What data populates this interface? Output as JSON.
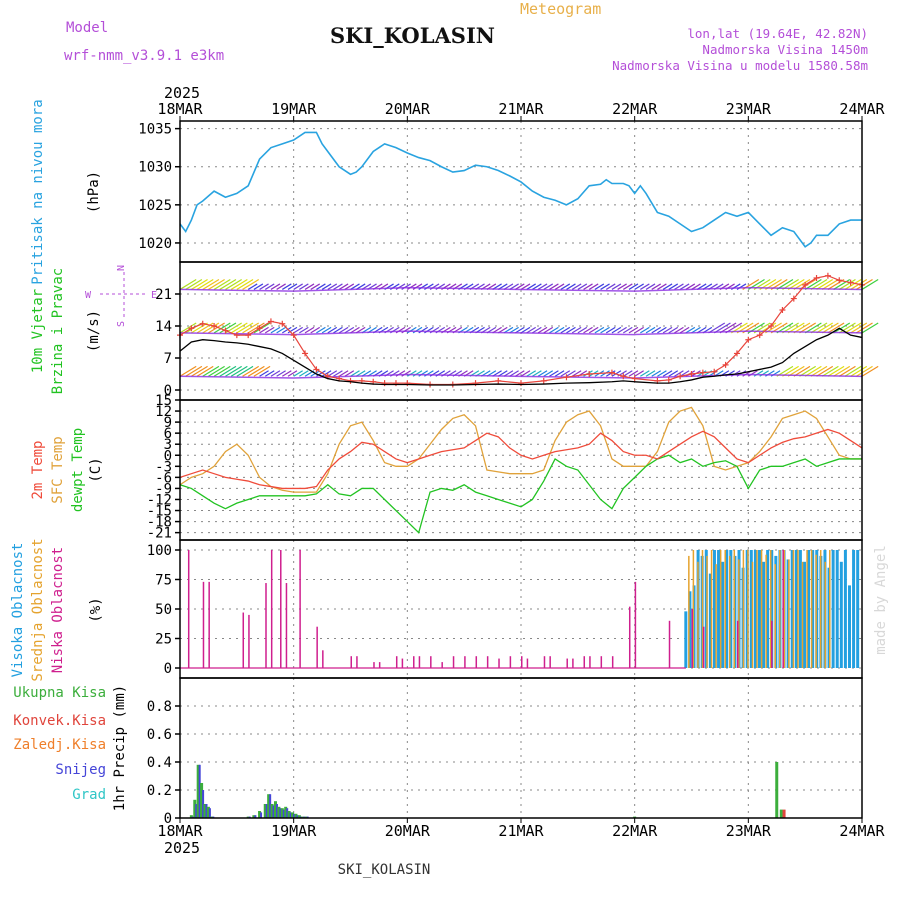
{
  "header": {
    "model_label": "Model",
    "model_name": "wrf-nmm_v3.9.1 e3km",
    "title": "SKI_KOLASIN",
    "meteogram": "Meteogram",
    "coords": "lon,lat (19.64E, 42.82N)",
    "elevation": "Nadmorska Visina 1450m",
    "model_elevation": "Nadmorska Visina u modelu 1580.58m",
    "footer_name": "SKI_KOLASIN",
    "watermark": "made by Angel"
  },
  "colors": {
    "pressure": "#29a3e0",
    "temp2m": "#ef4b3a",
    "sfc": "#e0a23a",
    "dewpt": "#22c322",
    "wind_purple": "#8a2be2",
    "wind_red": "#e8453c",
    "high_cloud": "#23a0e0",
    "mid_cloud": "#e5a32e",
    "low_cloud": "#cf1f8e",
    "total_precip": "#3cae3c",
    "conv_precip": "#e0453c",
    "frozen_precip": "#ef7f2a",
    "snow": "#4545d8",
    "graupel": "#2fc6c6"
  },
  "chart_data": [
    {
      "type": "line",
      "panel": "pressure",
      "title": "Pritisak na nivou mora",
      "ylabel": "(hPa)",
      "ylim": [
        1017.5,
        1036
      ],
      "yticks": [
        1020,
        1025,
        1030,
        1035
      ],
      "x_top_year": "2025",
      "x_ticks": [
        "18MAR",
        "19MAR",
        "20MAR",
        "21MAR",
        "22MAR",
        "23MAR",
        "24MAR"
      ],
      "xlim_days": [
        0,
        6
      ],
      "x": [
        0,
        0.05,
        0.1,
        0.15,
        0.2,
        0.3,
        0.4,
        0.5,
        0.6,
        0.7,
        0.8,
        0.9,
        1.0,
        1.1,
        1.2,
        1.25,
        1.3,
        1.4,
        1.5,
        1.55,
        1.6,
        1.7,
        1.8,
        1.9,
        2.0,
        2.1,
        2.2,
        2.3,
        2.4,
        2.5,
        2.6,
        2.7,
        2.8,
        2.9,
        3.0,
        3.1,
        3.2,
        3.3,
        3.4,
        3.5,
        3.6,
        3.7,
        3.75,
        3.8,
        3.9,
        3.95,
        4.0,
        4.05,
        4.1,
        4.2,
        4.3,
        4.4,
        4.5,
        4.6,
        4.7,
        4.8,
        4.9,
        5.0,
        5.1,
        5.2,
        5.3,
        5.4,
        5.5,
        5.55,
        5.6,
        5.7,
        5.8,
        5.9,
        6.0
      ],
      "values": [
        1022.5,
        1021.5,
        1023,
        1025,
        1025.5,
        1026.8,
        1026,
        1026.5,
        1027.5,
        1031,
        1032.5,
        1033,
        1033.5,
        1034.5,
        1034.5,
        1033,
        1032,
        1030,
        1029,
        1029.3,
        1030,
        1032,
        1033,
        1032.5,
        1031.8,
        1031.2,
        1030.8,
        1030,
        1029.3,
        1029.5,
        1030.2,
        1030,
        1029.5,
        1028.8,
        1028,
        1026.8,
        1026,
        1025.6,
        1025,
        1025.8,
        1027.5,
        1027.7,
        1028.3,
        1027.8,
        1027.8,
        1027.5,
        1026.5,
        1027.5,
        1026.5,
        1024,
        1023.5,
        1022.5,
        1021.5,
        1022,
        1023,
        1024,
        1023.5,
        1024,
        1022.5,
        1021,
        1022,
        1021.5,
        1019.5,
        1020,
        1021,
        1021,
        1022.5,
        1023,
        1023
      ]
    },
    {
      "type": "line",
      "panel": "wind",
      "title": "10m Vjetar",
      "subtitle": "Brzina i Pravac",
      "ylabel": "(m/s)",
      "ylim": [
        0,
        28
      ],
      "yticks": [
        0,
        7,
        14,
        21
      ],
      "compass": {
        "north": "N",
        "west": "W",
        "east": "E",
        "south": "S"
      },
      "x": [
        0,
        0.1,
        0.2,
        0.3,
        0.4,
        0.5,
        0.6,
        0.7,
        0.8,
        0.9,
        1.0,
        1.1,
        1.2,
        1.3,
        1.4,
        1.5,
        1.6,
        1.7,
        1.8,
        1.9,
        2.0,
        2.2,
        2.4,
        2.6,
        2.8,
        3.0,
        3.2,
        3.4,
        3.6,
        3.8,
        3.9,
        4.0,
        4.2,
        4.3,
        4.4,
        4.5,
        4.6,
        4.7,
        4.8,
        4.9,
        5.0,
        5.1,
        5.2,
        5.3,
        5.4,
        5.5,
        5.6,
        5.7,
        5.8,
        5.9,
        6.0
      ],
      "series": [
        {
          "name": "speed",
          "values": [
            8.5,
            10.5,
            11,
            10.8,
            10.5,
            10.3,
            10,
            9.5,
            9,
            8,
            6.5,
            5,
            3.5,
            2.5,
            2,
            1.8,
            1.5,
            1.3,
            1.2,
            1.2,
            1.2,
            1.1,
            1.1,
            1.2,
            1.3,
            1.2,
            1.3,
            1.5,
            1.6,
            1.8,
            2,
            1.8,
            1.5,
            1.5,
            1.8,
            2.2,
            2.8,
            3,
            3.3,
            3.5,
            4,
            4.5,
            5,
            6,
            8,
            9.5,
            11,
            12,
            13.5,
            12,
            11.5
          ]
        },
        {
          "name": "gust",
          "values": [
            12,
            13.5,
            14.5,
            14,
            13,
            12,
            12,
            13.5,
            15,
            14.5,
            12,
            8,
            4.5,
            3,
            2.5,
            2,
            2,
            1.8,
            1.5,
            1.5,
            1.5,
            1.2,
            1.2,
            1.5,
            2,
            1.5,
            2,
            2.8,
            3.5,
            3.8,
            3,
            2.5,
            2,
            2.2,
            3,
            3.5,
            3.8,
            4,
            5.5,
            8,
            11,
            12,
            14,
            17.5,
            20,
            23,
            24.5,
            25,
            24,
            23.5,
            23
          ]
        }
      ]
    },
    {
      "type": "line",
      "panel": "temperature",
      "labels": [
        "2m Temp",
        "SFC Temp",
        "dewpt Temp"
      ],
      "ylabel": "(C)",
      "ylim": [
        -23,
        15
      ],
      "yticks": [
        15,
        12,
        9,
        6,
        3,
        0,
        -3,
        -6,
        -9,
        -12,
        -15,
        -18,
        -21
      ],
      "x": [
        0,
        0.1,
        0.2,
        0.3,
        0.4,
        0.5,
        0.6,
        0.7,
        0.8,
        0.9,
        1.0,
        1.1,
        1.2,
        1.3,
        1.4,
        1.5,
        1.6,
        1.7,
        1.8,
        1.9,
        2.0,
        2.1,
        2.2,
        2.3,
        2.4,
        2.5,
        2.6,
        2.7,
        2.8,
        2.9,
        3.0,
        3.1,
        3.2,
        3.3,
        3.4,
        3.5,
        3.6,
        3.7,
        3.8,
        3.9,
        4.0,
        4.1,
        4.2,
        4.3,
        4.4,
        4.5,
        4.6,
        4.7,
        4.8,
        4.9,
        5.0,
        5.1,
        5.2,
        5.3,
        5.4,
        5.5,
        5.6,
        5.7,
        5.8,
        5.9,
        6.0
      ],
      "series": [
        {
          "name": "2m Temp",
          "values": [
            -6,
            -5,
            -4,
            -5,
            -6,
            -6.5,
            -7,
            -8,
            -8.5,
            -9,
            -9,
            -9,
            -8.5,
            -4,
            -1,
            1,
            3.5,
            3,
            1,
            -1,
            -2,
            -1,
            0,
            1,
            1.5,
            2,
            4,
            6,
            5,
            2,
            0,
            -1,
            0,
            1,
            1.5,
            2,
            3,
            6,
            4,
            1,
            0,
            0,
            -1,
            1,
            3,
            5,
            6.5,
            5,
            2,
            -1,
            -2,
            0,
            2,
            3.5,
            4.5,
            5,
            6,
            7,
            6,
            4,
            2
          ]
        },
        {
          "name": "SFC Temp",
          "values": [
            -8,
            -6,
            -5,
            -3,
            1,
            3,
            0,
            -6,
            -8.5,
            -9.5,
            -10,
            -10,
            -10,
            -5,
            3,
            8,
            9,
            4,
            -2,
            -3,
            -3,
            -1,
            3,
            7,
            10,
            11,
            8,
            -4,
            -4.5,
            -5,
            -5,
            -5,
            -4,
            4,
            9,
            11,
            12,
            8,
            -1,
            -3,
            -3,
            -3,
            1,
            9,
            12,
            13,
            8,
            -3,
            -4,
            -3,
            -2,
            1,
            5,
            10,
            11,
            12,
            10,
            5,
            0,
            -1,
            -1
          ]
        },
        {
          "name": "dewpt Temp",
          "values": [
            -8,
            -9,
            -11,
            -13,
            -14.5,
            -13,
            -12,
            -11,
            -11,
            -11,
            -11,
            -11,
            -10.5,
            -8,
            -10.5,
            -11,
            -9,
            -9,
            -12,
            -15,
            -18,
            -21,
            -10,
            -9,
            -9.5,
            -8,
            -10,
            -11,
            -12,
            -13,
            -14,
            -12,
            -7,
            -1,
            -3,
            -4,
            -8,
            -12,
            -14.5,
            -9,
            -6,
            -3,
            -1,
            0,
            -2,
            -1,
            -3,
            -2,
            -1.5,
            -3,
            -9,
            -4,
            -3,
            -3,
            -2,
            -1,
            -3,
            -2,
            -1,
            -1,
            -1
          ]
        }
      ]
    },
    {
      "type": "bar",
      "panel": "clouds",
      "labels": [
        "Visoka Oblacnost",
        "Srednja Oblacnost",
        "Niska Oblacnost"
      ],
      "ylabel": "(%)",
      "ylim": [
        0,
        100
      ],
      "yticks": [
        0,
        25,
        50,
        75,
        100
      ],
      "low_x": [
        0.07,
        0.2,
        0.25,
        0.55,
        0.6,
        0.75,
        0.8,
        0.88,
        0.93,
        1.05,
        1.2,
        1.25,
        1.5,
        1.55,
        1.7,
        1.75,
        1.9,
        1.95,
        2.05,
        2.1,
        2.2,
        2.3,
        2.4,
        2.5,
        2.6,
        2.7,
        2.8,
        2.9,
        3.0,
        3.05,
        3.2,
        3.25,
        3.4,
        3.45,
        3.55,
        3.6,
        3.7,
        3.8,
        3.95,
        4.0,
        4.3,
        4.5,
        4.6,
        4.9,
        5.2,
        5.3
      ],
      "low_values": [
        100,
        73,
        73,
        47,
        45,
        72,
        100,
        100,
        72,
        100,
        35,
        15,
        10,
        10,
        5,
        5,
        10,
        8,
        10,
        10,
        10,
        5,
        10,
        10,
        10,
        10,
        8,
        10,
        10,
        8,
        10,
        10,
        8,
        8,
        10,
        10,
        10,
        10,
        52,
        73,
        40,
        50,
        35,
        40,
        40,
        100
      ],
      "mid_start_x": 4.47,
      "high_start_x": 4.45,
      "mid_values": [
        95,
        100,
        90,
        100,
        95,
        100,
        88,
        100,
        100,
        95,
        100,
        92,
        100,
        100,
        90,
        100,
        100,
        96,
        100,
        88,
        100,
        100,
        92,
        100,
        100,
        90,
        100,
        100,
        96,
        100,
        90,
        100
      ],
      "high_values": [
        48,
        65,
        70,
        100,
        95,
        100,
        80,
        100,
        100,
        90,
        100,
        100,
        95,
        100,
        85,
        100,
        100,
        100,
        100,
        90,
        100,
        100,
        95,
        100,
        100,
        92,
        100,
        100,
        100,
        90,
        100,
        100,
        100,
        95,
        100,
        85,
        100,
        100,
        90,
        100,
        70,
        100,
        100
      ]
    },
    {
      "type": "bar",
      "panel": "precip",
      "labels": [
        "Ukupna Kisa",
        "Konvek.Kisa",
        "Zaledj.Kisa",
        "Snijeg",
        "Grad"
      ],
      "ylabel": "1hr Precip (mm)",
      "ylim": [
        0,
        1.0
      ],
      "yticks": [
        0,
        0.2,
        0.4,
        0.6,
        0.8
      ],
      "x_bottom_year": "2025",
      "x_ticks": [
        "18MAR",
        "19MAR",
        "20MAR",
        "21MAR",
        "22MAR",
        "23MAR",
        "24MAR"
      ],
      "total_x": [
        0.1,
        0.13,
        0.16,
        0.19,
        0.22,
        0.25,
        0.28,
        0.6,
        0.65,
        0.7,
        0.75,
        0.78,
        0.81,
        0.84,
        0.87,
        0.9,
        0.93,
        0.96,
        0.99,
        1.02,
        1.05,
        1.08,
        1.11,
        4.0,
        5.25,
        5.29
      ],
      "total_values": [
        0.02,
        0.13,
        0.38,
        0.25,
        0.1,
        0.08,
        0.01,
        0.01,
        0.02,
        0.05,
        0.1,
        0.17,
        0.1,
        0.12,
        0.08,
        0.07,
        0.08,
        0.05,
        0.04,
        0.03,
        0.02,
        0.01,
        0.01,
        0.01,
        0.4,
        0.06
      ],
      "snow_values": [
        0.01,
        0.1,
        0.38,
        0.2,
        0.1,
        0.07,
        0.01,
        0.01,
        0.02,
        0.04,
        0.1,
        0.17,
        0.09,
        0.1,
        0.07,
        0.06,
        0.07,
        0.04,
        0.03,
        0.02,
        0.01,
        0.01,
        0.01,
        0.0,
        0.0,
        0.0
      ]
    }
  ]
}
